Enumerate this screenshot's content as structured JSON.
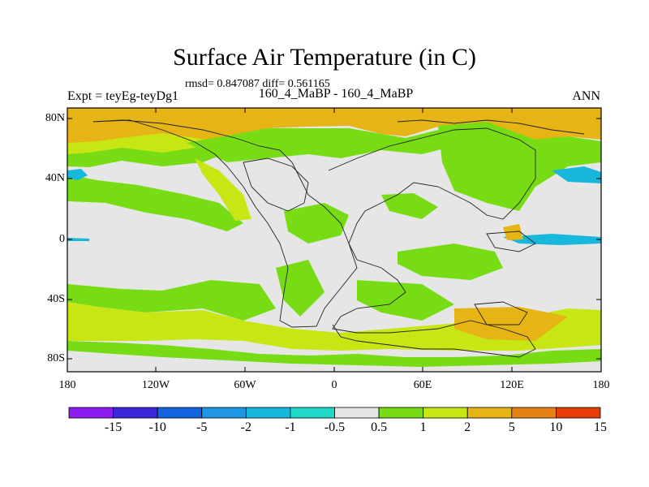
{
  "header": {
    "title": "Surface Air Temperature (in C)",
    "stats": "rmsd= 0.847087  diff= 0.561165",
    "subtitle": "160_4_MaBP - 160_4_MaBP",
    "experiment": "Expt = teyEg-teyDg1",
    "season": "ANN"
  },
  "map": {
    "lat_ticks": [
      "80N",
      "40N",
      "0",
      "40S",
      "80S"
    ],
    "lon_ticks": [
      "180",
      "120W",
      "60W",
      "0",
      "60E",
      "120E",
      "180"
    ],
    "lat_range": [
      -90,
      90
    ],
    "lon_range": [
      -180,
      180
    ]
  },
  "colorbar": {
    "labels": [
      "-15",
      "-10",
      "-5",
      "-2",
      "-1",
      "-0.5",
      "0.5",
      "1",
      "2",
      "5",
      "10",
      "15"
    ],
    "colors": [
      "#8c1cf0",
      "#3c28d8",
      "#1464e0",
      "#1e96e6",
      "#18b8dc",
      "#20d8c8",
      "#e6e6e6",
      "#78dc14",
      "#c8e614",
      "#e6b414",
      "#e68214",
      "#e63c0a"
    ]
  }
}
